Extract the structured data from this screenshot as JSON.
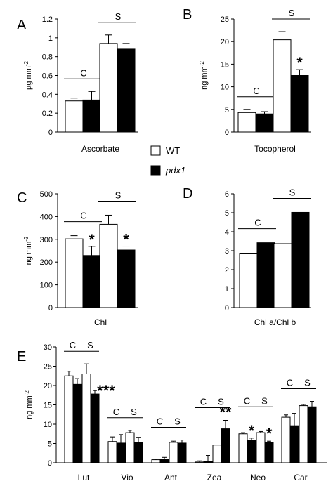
{
  "legend": [
    {
      "label": "WT",
      "color": "#ffffff"
    },
    {
      "label": "pdx1",
      "color": "#000000",
      "italic": true
    }
  ],
  "colors": {
    "wt": "#ffffff",
    "mutant": "#000000",
    "axis": "#000000"
  },
  "chart_data": [
    {
      "panel": "A",
      "type": "bar",
      "xlabel": "Ascorbate",
      "ylabel": "µg mm-2",
      "ylim": [
        0,
        1.2
      ],
      "ticks": [
        0,
        0.2,
        0.4,
        0.6,
        0.8,
        1,
        1.2
      ],
      "categories": [
        "C",
        "S"
      ],
      "series": [
        {
          "name": "WT",
          "values": [
            0.33,
            0.94
          ],
          "errors": [
            0.03,
            0.09
          ]
        },
        {
          "name": "pdx1",
          "values": [
            0.34,
            0.88
          ],
          "errors": [
            0.09,
            0.06
          ]
        }
      ],
      "stars": []
    },
    {
      "panel": "B",
      "type": "bar",
      "xlabel": "Tocopherol",
      "ylabel": "ng mm-2",
      "ylim": [
        0,
        25
      ],
      "ticks": [
        0,
        5,
        10,
        15,
        20,
        25
      ],
      "categories": [
        "C",
        "S"
      ],
      "series": [
        {
          "name": "WT",
          "values": [
            4.3,
            20.4
          ],
          "errors": [
            0.7,
            1.8
          ]
        },
        {
          "name": "pdx1",
          "values": [
            4.0,
            12.5
          ],
          "errors": [
            0.5,
            1.3
          ]
        }
      ],
      "stars": [
        {
          "group": 1,
          "series": 1,
          "text": "*"
        }
      ]
    },
    {
      "panel": "C",
      "type": "bar",
      "xlabel": "Chl",
      "ylabel": "ng mm-2",
      "ylim": [
        0,
        500
      ],
      "ticks": [
        0,
        100,
        200,
        300,
        400,
        500
      ],
      "categories": [
        "C",
        "S"
      ],
      "series": [
        {
          "name": "WT",
          "values": [
            302,
            366
          ],
          "errors": [
            14,
            40
          ]
        },
        {
          "name": "pdx1",
          "values": [
            229,
            253
          ],
          "errors": [
            40,
            17
          ]
        }
      ],
      "stars": [
        {
          "group": 0,
          "series": 1,
          "text": "*"
        },
        {
          "group": 1,
          "series": 1,
          "text": "*"
        }
      ]
    },
    {
      "panel": "D",
      "type": "bar",
      "xlabel": "Chl a/Chl b",
      "ylabel": "",
      "ylim": [
        0,
        6
      ],
      "ticks": [
        0,
        1,
        2,
        3,
        4,
        5,
        6
      ],
      "categories": [
        "C",
        "S"
      ],
      "series": [
        {
          "name": "WT",
          "values": [
            2.87,
            3.37
          ],
          "errors": [
            0,
            0
          ]
        },
        {
          "name": "pdx1",
          "values": [
            3.42,
            5.02
          ],
          "errors": [
            0,
            0
          ]
        }
      ],
      "stars": []
    },
    {
      "panel": "E",
      "type": "bar",
      "xlabel": "",
      "ylabel": "ng mm-2",
      "ylim": [
        0,
        30
      ],
      "ticks": [
        0,
        5,
        10,
        15,
        20,
        25,
        30
      ],
      "categories": [
        "Lut",
        "Vio",
        "Ant",
        "Zea",
        "Neo",
        "Car"
      ],
      "subgroups": [
        "C",
        "S"
      ],
      "series": [
        {
          "name": "WT C",
          "values": [
            22.5,
            5.5,
            0.8,
            0.2,
            7.5,
            11.8
          ],
          "errors": [
            1.2,
            1.2,
            0.2,
            0.3,
            0.3,
            0.6
          ]
        },
        {
          "name": "pdx1 C",
          "values": [
            20.3,
            5.1,
            0.9,
            0.4,
            5.9,
            9.6
          ],
          "errors": [
            1.5,
            2.2,
            0.5,
            1.5,
            0.5,
            3.2
          ]
        },
        {
          "name": "WT S",
          "values": [
            23.0,
            7.8,
            5.3,
            4.6,
            7.8,
            14.8
          ],
          "errors": [
            2.6,
            0.6,
            0.3,
            0,
            0.3,
            0.3
          ]
        },
        {
          "name": "pdx1 S",
          "values": [
            17.8,
            5.2,
            5.1,
            8.8,
            5.3,
            14.5
          ],
          "errors": [
            0.9,
            1.4,
            0.8,
            2.2,
            0.3,
            1.4
          ]
        }
      ],
      "stars": [
        {
          "category": 0,
          "text": "***"
        },
        {
          "category": 3,
          "text": "**"
        },
        {
          "category": 4,
          "sub": 0,
          "text": "*"
        },
        {
          "category": 4,
          "sub": 1,
          "text": "*"
        }
      ]
    }
  ]
}
